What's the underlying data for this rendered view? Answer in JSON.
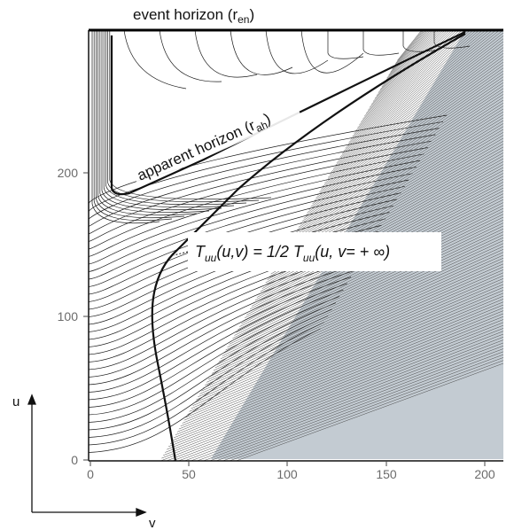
{
  "figure": {
    "event_horizon_label": "event horizon (r",
    "event_horizon_sub": "en",
    "apparent_horizon_label": "apparent horizon (r",
    "apparent_horizon_sub": "ah",
    "tuu_label": "T",
    "tuu_sub": "uu",
    "tuu_mid": "(u,v) = 1/2 T",
    "tuu_sub2": "uu",
    "tuu_tail": "(u, v= + ∞)",
    "axis_u_label": "u",
    "axis_v_label": "v",
    "u_ticks": [
      "0",
      "100",
      "200"
    ],
    "v_ticks": [
      "0",
      "50",
      "100",
      "150",
      "200"
    ],
    "colors": {
      "ink": "#111111",
      "shade": "#b9c2ca",
      "tick_text": "#6b6b6b"
    }
  }
}
